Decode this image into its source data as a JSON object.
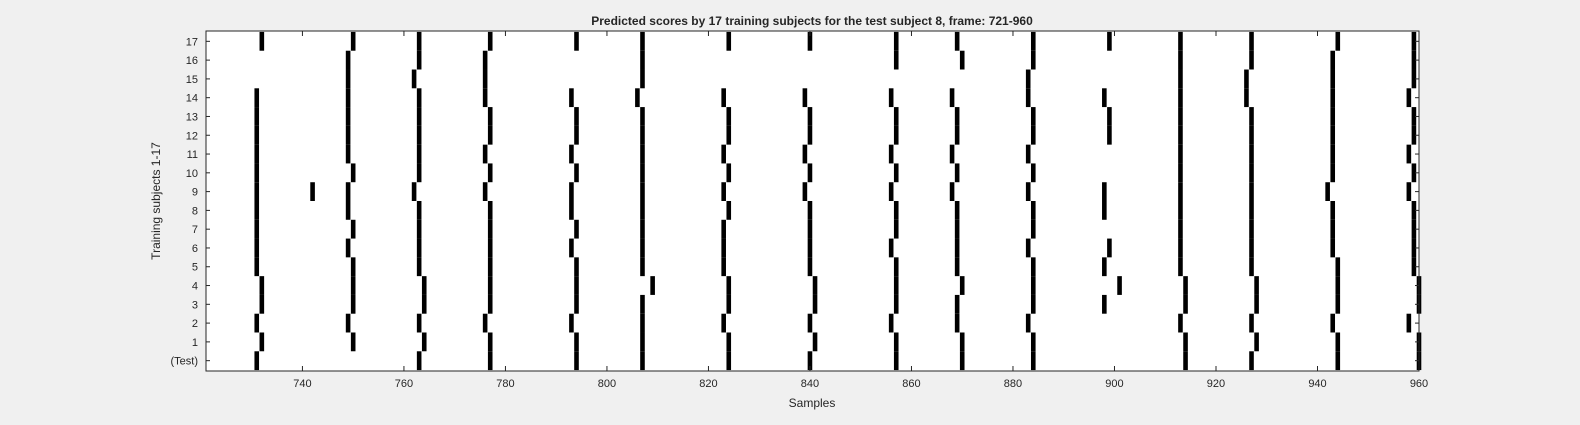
{
  "chart_data": {
    "type": "event_raster",
    "title": "Predicted scores by 17 training subjects for the test subject 8, frame: 721-960",
    "xlabel": "Samples",
    "ylabel": "Training subjects 1-17",
    "xlim": [
      721,
      960
    ],
    "x_ticks": [
      740,
      760,
      780,
      800,
      820,
      840,
      860,
      880,
      900,
      920,
      940,
      960
    ],
    "y_tick_labels": [
      "(Test)",
      "1",
      "2",
      "3",
      "4",
      "5",
      "6",
      "7",
      "8",
      "9",
      "10",
      "11",
      "12",
      "13",
      "14",
      "15",
      "16",
      "17"
    ],
    "grid": false,
    "colors": {
      "background": "#f0f0f0",
      "plot_area": "#ffffff",
      "marks": "#000000",
      "axes": "#262626"
    },
    "rows": [
      {
        "label": "(Test)",
        "events": [
          731,
          763,
          777,
          794,
          807,
          824,
          840,
          857,
          870,
          884,
          914,
          927,
          944,
          960
        ]
      },
      {
        "label": "1",
        "events": [
          732,
          750,
          764,
          777,
          794,
          807,
          824,
          841,
          857,
          870,
          884,
          914,
          928,
          944,
          960
        ]
      },
      {
        "label": "2",
        "events": [
          731,
          749,
          763,
          776,
          793,
          807,
          823,
          840,
          856,
          869,
          883,
          913,
          927,
          943,
          958
        ]
      },
      {
        "label": "3",
        "events": [
          732,
          750,
          764,
          777,
          794,
          807,
          824,
          841,
          857,
          869,
          884,
          898,
          914,
          928,
          944,
          960
        ]
      },
      {
        "label": "4",
        "events": [
          732,
          750,
          764,
          777,
          794,
          809,
          824,
          841,
          857,
          870,
          884,
          901,
          914,
          928,
          944,
          960
        ]
      },
      {
        "label": "5",
        "events": [
          731,
          750,
          763,
          777,
          794,
          807,
          823,
          840,
          857,
          869,
          884,
          898,
          913,
          927,
          944,
          959
        ]
      },
      {
        "label": "6",
        "events": [
          731,
          749,
          763,
          777,
          793,
          807,
          823,
          840,
          856,
          869,
          883,
          899,
          913,
          927,
          943,
          959
        ]
      },
      {
        "label": "7",
        "events": [
          731,
          750,
          763,
          777,
          794,
          807,
          823,
          840,
          857,
          869,
          884,
          913,
          927,
          943,
          959
        ]
      },
      {
        "label": "8",
        "events": [
          731,
          749,
          763,
          777,
          793,
          807,
          824,
          840,
          857,
          869,
          884,
          898,
          913,
          927,
          943,
          959
        ]
      },
      {
        "label": "9",
        "events": [
          731,
          742,
          749,
          762,
          776,
          793,
          807,
          823,
          839,
          856,
          868,
          883,
          898,
          913,
          927,
          942,
          958
        ]
      },
      {
        "label": "10",
        "events": [
          731,
          750,
          763,
          777,
          794,
          807,
          824,
          840,
          857,
          869,
          884,
          913,
          927,
          943,
          959
        ]
      },
      {
        "label": "11",
        "events": [
          731,
          749,
          763,
          776,
          793,
          807,
          823,
          839,
          856,
          868,
          883,
          913,
          927,
          943,
          958
        ]
      },
      {
        "label": "12",
        "events": [
          731,
          749,
          763,
          777,
          794,
          807,
          824,
          840,
          857,
          869,
          884,
          899,
          913,
          927,
          943,
          959
        ]
      },
      {
        "label": "13",
        "events": [
          731,
          749,
          763,
          777,
          794,
          807,
          824,
          840,
          857,
          869,
          884,
          899,
          913,
          927,
          943,
          959
        ]
      },
      {
        "label": "14",
        "events": [
          731,
          749,
          763,
          776,
          793,
          806,
          823,
          839,
          856,
          868,
          883,
          898,
          913,
          926,
          943,
          958
        ]
      },
      {
        "label": "15",
        "events": [
          749,
          762,
          776,
          807,
          883,
          913,
          926,
          943,
          959
        ]
      },
      {
        "label": "16",
        "events": [
          749,
          763,
          776,
          807,
          857,
          870,
          884,
          913,
          927,
          943,
          959
        ]
      },
      {
        "label": "17",
        "events": [
          732,
          750,
          763,
          777,
          794,
          807,
          824,
          840,
          857,
          869,
          884,
          899,
          913,
          927,
          944,
          959
        ]
      }
    ]
  }
}
